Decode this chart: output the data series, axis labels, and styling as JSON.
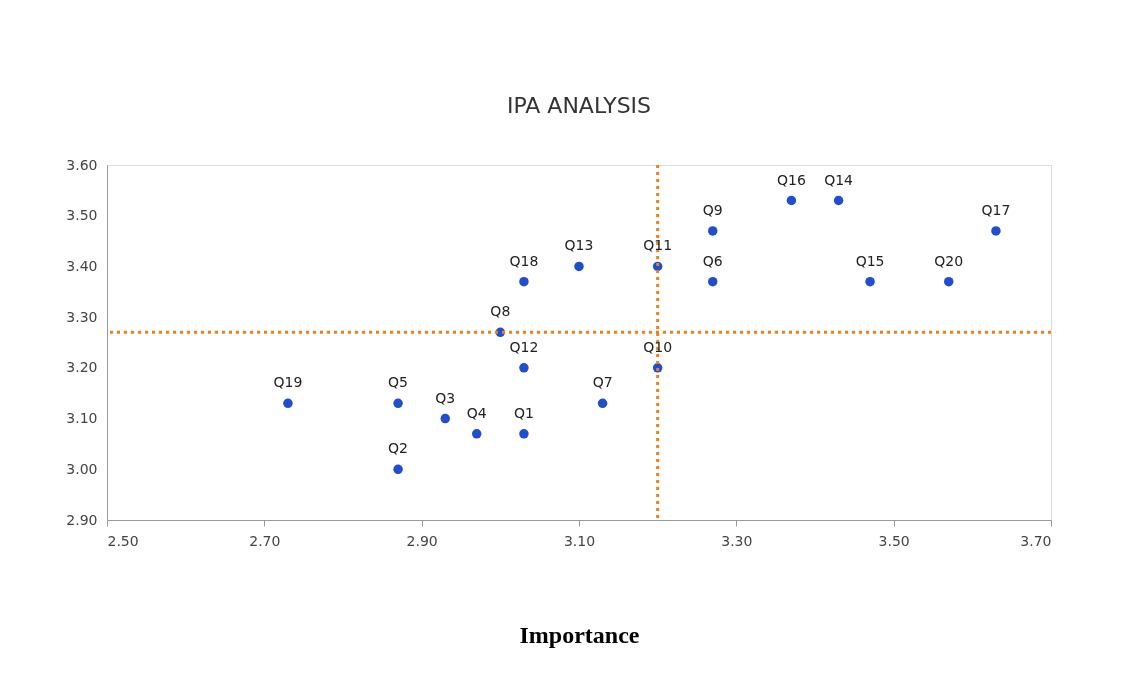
{
  "chart_data": {
    "type": "scatter",
    "title": "IPA ANALYSIS",
    "xlabel": "Importance",
    "x": [
      3.03,
      2.87,
      2.93,
      2.97,
      2.87,
      3.27,
      3.13,
      3.0,
      3.27,
      3.2,
      3.2,
      3.03,
      3.1,
      3.43,
      3.47,
      3.37,
      3.63,
      3.03,
      2.73,
      3.57
    ],
    "series": [
      {
        "color": "#1f4fd0",
        "values": [
          3.07,
          3.0,
          3.1,
          3.07,
          3.13,
          3.37,
          3.13,
          3.27,
          3.47,
          3.2,
          3.4,
          3.2,
          3.4,
          3.53,
          3.37,
          3.53,
          3.47,
          3.37,
          3.13,
          3.37
        ]
      }
    ],
    "annotations": [
      {
        "text": "Q1",
        "x": 3.03,
        "y": 3.07
      },
      {
        "text": "Q2",
        "x": 2.87,
        "y": 3.0
      },
      {
        "text": "Q3",
        "x": 2.93,
        "y": 3.1
      },
      {
        "text": "Q4",
        "x": 2.97,
        "y": 3.07
      },
      {
        "text": "Q5",
        "x": 2.87,
        "y": 3.13
      },
      {
        "text": "Q6",
        "x": 3.27,
        "y": 3.37
      },
      {
        "text": "Q7",
        "x": 3.13,
        "y": 3.13
      },
      {
        "text": "Q8",
        "x": 3.0,
        "y": 3.27
      },
      {
        "text": "Q9",
        "x": 3.27,
        "y": 3.47
      },
      {
        "text": "Q10",
        "x": 3.2,
        "y": 3.2
      },
      {
        "text": "Q11",
        "x": 3.2,
        "y": 3.4
      },
      {
        "text": "Q12",
        "x": 3.03,
        "y": 3.2
      },
      {
        "text": "Q13",
        "x": 3.1,
        "y": 3.4
      },
      {
        "text": "Q14",
        "x": 3.43,
        "y": 3.53
      },
      {
        "text": "Q15",
        "x": 3.47,
        "y": 3.37
      },
      {
        "text": "Q16",
        "x": 3.37,
        "y": 3.53
      },
      {
        "text": "Q17",
        "x": 3.63,
        "y": 3.47
      },
      {
        "text": "Q18",
        "x": 3.03,
        "y": 3.37
      },
      {
        "text": "Q19",
        "x": 2.73,
        "y": 3.13
      },
      {
        "text": "Q20",
        "x": 3.57,
        "y": 3.37
      }
    ],
    "xlim": [
      2.5,
      3.7
    ],
    "xticks": [
      {
        "value": 2.5,
        "label": "2.50"
      },
      {
        "value": 2.7,
        "label": "2.70"
      },
      {
        "value": 2.9,
        "label": "2.90"
      },
      {
        "value": 3.1,
        "label": "3.10"
      },
      {
        "value": 3.3,
        "label": "3.30"
      },
      {
        "value": 3.5,
        "label": "3.50"
      },
      {
        "value": 3.7,
        "label": "3.70"
      }
    ],
    "ylim": [
      2.9,
      3.6
    ],
    "yticks": [
      {
        "value": 2.9,
        "label": "2.90"
      },
      {
        "value": 3.0,
        "label": "3.00"
      },
      {
        "value": 3.1,
        "label": "3.10"
      },
      {
        "value": 3.2,
        "label": "3.20"
      },
      {
        "value": 3.3,
        "label": "3.30"
      },
      {
        "value": 3.4,
        "label": "3.40"
      },
      {
        "value": 3.5,
        "label": "3.50"
      },
      {
        "value": 3.6,
        "label": "3.60"
      }
    ],
    "ref_lines": [
      {
        "axis": "x",
        "value": 3.2,
        "color": "#f07f1a",
        "line_style": "dotted"
      },
      {
        "axis": "y",
        "value": 3.27,
        "color": "#f07f1a",
        "line_style": "dotted"
      }
    ],
    "marker": "circle"
  }
}
